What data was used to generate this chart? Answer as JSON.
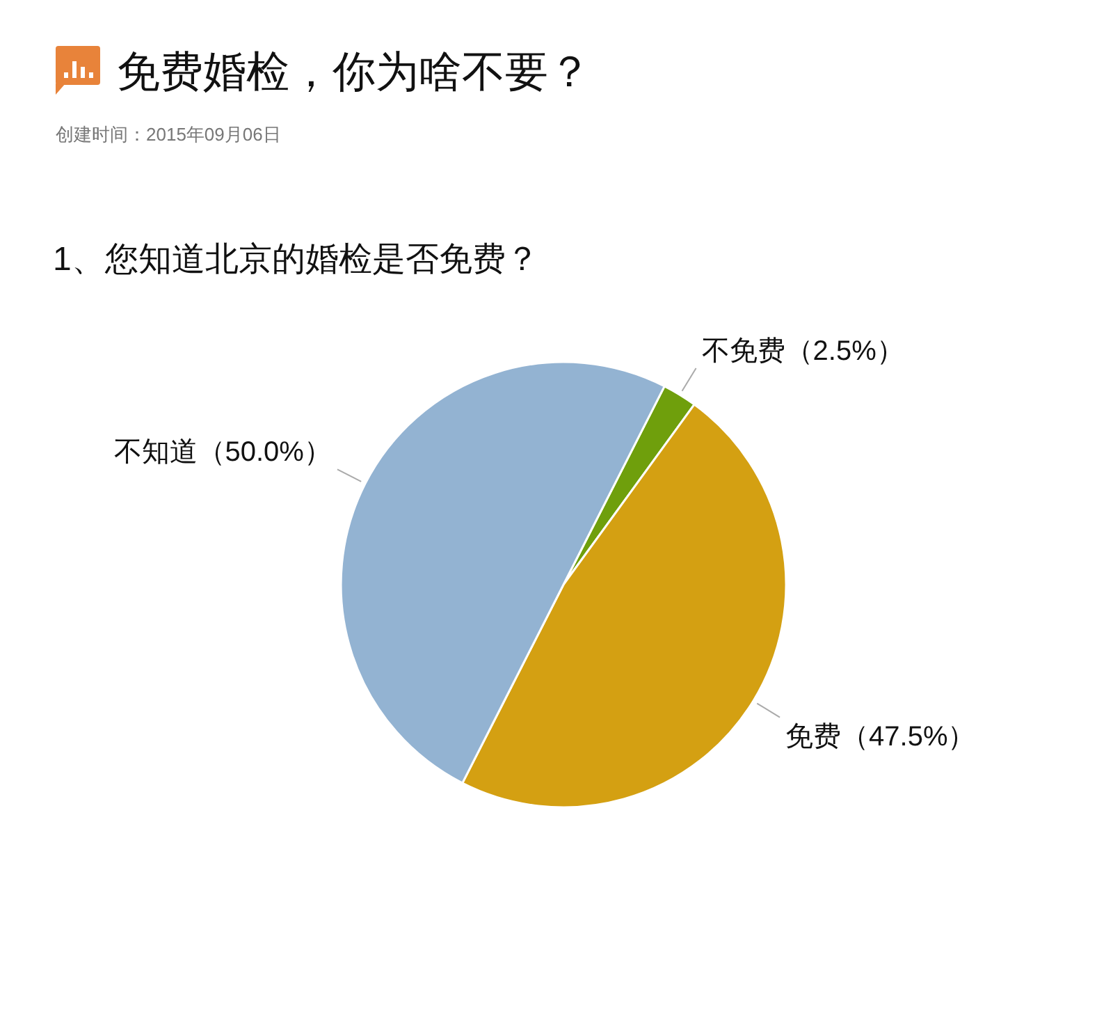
{
  "chart_data": {
    "type": "pie",
    "title": "免费婚检，你为啥不要？",
    "subtitle": "1、您知道北京的婚检是否免费？",
    "categories": [
      "不免费",
      "免费",
      "不知道"
    ],
    "values": [
      2.5,
      47.5,
      50.0
    ],
    "value_labels": [
      "（2.5%）",
      "（47.5%）",
      "（50.0%）"
    ],
    "colors": [
      "#6f9f0c",
      "#d4a012",
      "#93b3d2"
    ],
    "annotations": [
      "创建时间：2015年09月06日"
    ]
  }
}
